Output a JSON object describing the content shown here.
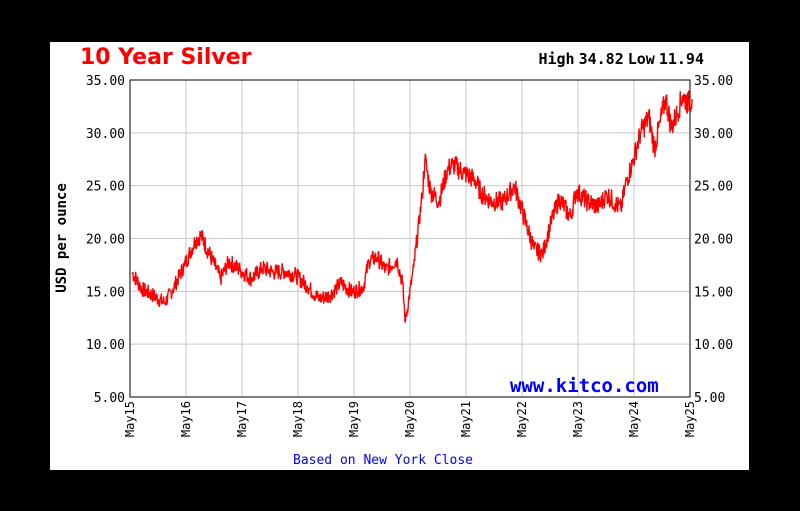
{
  "header": {
    "title": "10 Year Silver",
    "high_label": "High",
    "high_value": "34.82",
    "low_label": "Low",
    "low_value": "11.94"
  },
  "watermark": "www.kitco.com",
  "footer": "Based on New York Close",
  "colors": {
    "title": "#ff0000",
    "series": "#ff0000",
    "link": "#0000ff",
    "grid": "#c8c8c8",
    "frame": "#000000",
    "background_outer": "#000000",
    "background_panel": "#ffffff"
  },
  "chart_data": {
    "type": "line",
    "title": "10 Year Silver",
    "ylabel": "USD per ounce",
    "xlabel": "",
    "ylim": [
      5,
      35
    ],
    "xlim": [
      "May15",
      "May25"
    ],
    "y_ticks_left": [
      "35.00",
      "30.00",
      "25.00",
      "20.00",
      "15.00",
      "10.00",
      "5.00"
    ],
    "y_ticks_right": [
      "35.00",
      "30.00",
      "25.00",
      "20.00",
      "15.00",
      "10.00",
      "5.00"
    ],
    "x_tick_labels": [
      "May15",
      "May16",
      "May17",
      "May18",
      "May19",
      "May20",
      "May21",
      "May22",
      "May23",
      "May24",
      "May25"
    ],
    "grid": true,
    "series": [
      {
        "x": [
          2015.37,
          2015.55,
          2015.75,
          2015.95,
          2016.1,
          2016.3,
          2016.5,
          2016.6,
          2016.8,
          2016.95,
          2017.1,
          2017.3,
          2017.5,
          2017.7,
          2017.9,
          2018.1,
          2018.3,
          2018.5,
          2018.7,
          2018.9,
          2019.1,
          2019.3,
          2019.5,
          2019.6,
          2019.75,
          2019.9,
          2020.1,
          2020.2,
          2020.25,
          2020.4,
          2020.55,
          2020.6,
          2020.7,
          2020.85,
          2021.0,
          2021.1,
          2021.3,
          2021.5,
          2021.6,
          2021.8,
          2022.0,
          2022.2,
          2022.4,
          2022.55,
          2022.7,
          2022.85,
          2023.0,
          2023.2,
          2023.3,
          2023.5,
          2023.7,
          2023.85,
          2024.0,
          2024.1,
          2024.2,
          2024.3,
          2024.45,
          2024.6,
          2024.7,
          2024.8,
          2024.9,
          2025.0,
          2025.1,
          2025.2,
          2025.3,
          2025.37
        ],
        "y": [
          16.8,
          15.2,
          14.6,
          13.9,
          15.2,
          17.4,
          19.8,
          20.3,
          18.0,
          16.2,
          17.8,
          17.0,
          16.2,
          17.2,
          16.8,
          16.9,
          16.5,
          15.5,
          14.3,
          14.6,
          15.8,
          14.9,
          15.4,
          17.9,
          18.2,
          17.0,
          18.0,
          15.8,
          12.1,
          17.3,
          24.0,
          27.5,
          24.5,
          23.5,
          26.5,
          27.0,
          26.2,
          25.5,
          24.3,
          23.5,
          23.5,
          25.0,
          21.5,
          19.0,
          18.5,
          21.5,
          23.8,
          22.0,
          24.5,
          23.5,
          23.0,
          24.2,
          23.3,
          22.8,
          25.5,
          27.0,
          30.0,
          31.5,
          28.5,
          31.0,
          33.3,
          30.5,
          31.8,
          33.5,
          32.8,
          33.2
        ]
      }
    ]
  }
}
